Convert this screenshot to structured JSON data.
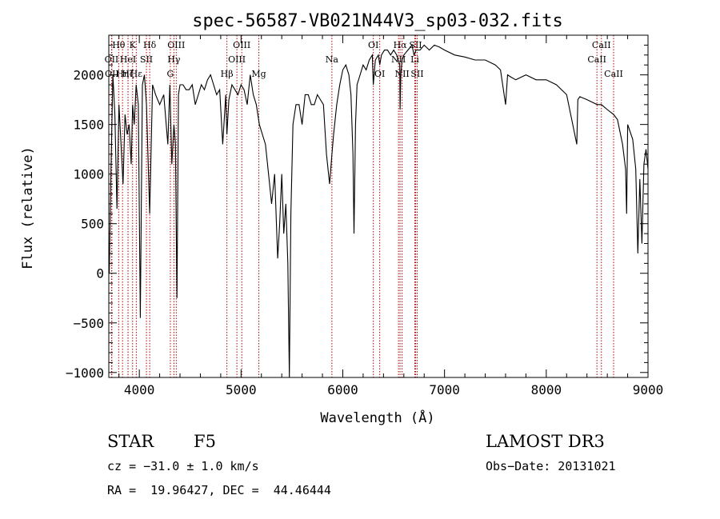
{
  "chart_data": {
    "type": "line",
    "title": "spec-56587-VB021N44V3_sp03-032.fits",
    "xlabel": "Wavelength (Å)",
    "ylabel": "Flux (relative)",
    "xlim": [
      3700,
      9000
    ],
    "ylim": [
      -1050,
      2400
    ],
    "x_ticks": [
      4000,
      5000,
      6000,
      7000,
      8000,
      9000
    ],
    "y_ticks": [
      -1000,
      -500,
      0,
      500,
      1000,
      1500,
      2000
    ],
    "grid": false,
    "series": [
      {
        "color": "#000000",
        "x": [
          3705,
          3720,
          3740,
          3760,
          3780,
          3800,
          3820,
          3840,
          3860,
          3880,
          3900,
          3920,
          3934,
          3950,
          3969,
          3990,
          4010,
          4030,
          4050,
          4070,
          4102,
          4130,
          4160,
          4200,
          4240,
          4280,
          4300,
          4320,
          4340,
          4355,
          4370,
          4385,
          4400,
          4430,
          4460,
          4490,
          4520,
          4550,
          4580,
          4610,
          4640,
          4670,
          4700,
          4730,
          4760,
          4790,
          4820,
          4850,
          4861,
          4880,
          4910,
          4940,
          4970,
          5000,
          5030,
          5060,
          5090,
          5120,
          5150,
          5180,
          5210,
          5240,
          5270,
          5300,
          5330,
          5360,
          5380,
          5400,
          5420,
          5440,
          5460,
          5475,
          5490,
          5510,
          5540,
          5570,
          5600,
          5630,
          5660,
          5690,
          5720,
          5750,
          5780,
          5810,
          5840,
          5870,
          5893,
          5910,
          5940,
          5970,
          6000,
          6030,
          6060,
          6080,
          6100,
          6110,
          6125,
          6140,
          6170,
          6200,
          6230,
          6260,
          6290,
          6300,
          6320,
          6350,
          6363,
          6380,
          6410,
          6440,
          6470,
          6500,
          6530,
          6560,
          6563,
          6570,
          6583,
          6600,
          6640,
          6680,
          6700,
          6720,
          6760,
          6800,
          6850,
          6900,
          6950,
          7000,
          7100,
          7200,
          7300,
          7400,
          7500,
          7550,
          7600,
          7620,
          7650,
          7700,
          7800,
          7900,
          8000,
          8100,
          8200,
          8300,
          8310,
          8330,
          8400,
          8500,
          8542,
          8600,
          8662,
          8700,
          8750,
          8780,
          8790,
          8800,
          8850,
          8880,
          8900,
          8920,
          8940,
          8960,
          8980,
          9000
        ],
        "y": [
          0,
          950,
          2000,
          1600,
          650,
          1700,
          1300,
          900,
          1600,
          1400,
          1500,
          1100,
          1700,
          1500,
          1900,
          1700,
          -450,
          1900,
          2000,
          1700,
          600,
          1900,
          1800,
          1700,
          1800,
          1300,
          1900,
          1100,
          1500,
          1300,
          -250,
          1800,
          1900,
          1900,
          1850,
          1850,
          1900,
          1700,
          1800,
          1900,
          1850,
          1950,
          2000,
          1900,
          1800,
          1850,
          1300,
          1800,
          1400,
          1750,
          1900,
          1850,
          1800,
          1900,
          1850,
          1700,
          2000,
          1800,
          1700,
          1500,
          1400,
          1300,
          1000,
          700,
          1000,
          150,
          500,
          1000,
          400,
          700,
          100,
          -1050,
          600,
          1500,
          1700,
          1700,
          1500,
          1800,
          1800,
          1700,
          1700,
          1800,
          1750,
          1700,
          1200,
          900,
          1200,
          1400,
          1700,
          1900,
          2050,
          2100,
          2000,
          1800,
          1200,
          400,
          1500,
          1900,
          2000,
          2100,
          2050,
          2150,
          2200,
          1900,
          2150,
          2200,
          2100,
          2200,
          2250,
          2250,
          2200,
          2250,
          2200,
          2100,
          1650,
          2000,
          2150,
          2200,
          2250,
          2300,
          2200,
          2250,
          2250,
          2300,
          2250,
          2300,
          2280,
          2250,
          2200,
          2180,
          2150,
          2150,
          2100,
          2050,
          1700,
          2000,
          1980,
          1950,
          2000,
          1950,
          1950,
          1900,
          1800,
          1300,
          1750,
          1780,
          1750,
          1700,
          1700,
          1650,
          1600,
          1550,
          1300,
          1050,
          600,
          1500,
          1350,
          1050,
          200,
          950,
          300,
          1100,
          1250,
          1050
        ]
      }
    ],
    "line_markers": [
      {
        "label": "Hθ",
        "x": 3797,
        "row": 0
      },
      {
        "label": "OII",
        "x": 3727,
        "row": 1
      },
      {
        "label": "OII",
        "x": 3730,
        "row": 2
      },
      {
        "label": "Hη",
        "x": 3835,
        "row": 2
      },
      {
        "label": "K",
        "x": 3934,
        "row": 0
      },
      {
        "label": "HeI",
        "x": 3889,
        "row": 1
      },
      {
        "label": "Hζ",
        "x": 3889,
        "row": 2
      },
      {
        "label": "Hε",
        "x": 3970,
        "row": 2
      },
      {
        "label": "Hδ",
        "x": 4102,
        "row": 0
      },
      {
        "label": "SII",
        "x": 4070,
        "row": 1
      },
      {
        "label": "OIII",
        "x": 4363,
        "row": 0
      },
      {
        "label": "Hγ",
        "x": 4340,
        "row": 1
      },
      {
        "label": "G",
        "x": 4305,
        "row": 2
      },
      {
        "label": "OIII",
        "x": 5007,
        "row": 0
      },
      {
        "label": "OIII",
        "x": 4959,
        "row": 1
      },
      {
        "label": "Hβ",
        "x": 4861,
        "row": 2
      },
      {
        "label": "Mg",
        "x": 5175,
        "row": 2
      },
      {
        "label": "Na",
        "x": 5893,
        "row": 1
      },
      {
        "label": "OI",
        "x": 6300,
        "row": 0
      },
      {
        "label": "OI",
        "x": 6363,
        "row": 2
      },
      {
        "label": "Hα",
        "x": 6563,
        "row": 0
      },
      {
        "label": "NII",
        "x": 6548,
        "row": 1
      },
      {
        "label": "NII",
        "x": 6583,
        "row": 2
      },
      {
        "label": "SII",
        "x": 6716,
        "row": 0
      },
      {
        "label": "Li",
        "x": 6708,
        "row": 1
      },
      {
        "label": "SII",
        "x": 6731,
        "row": 2
      },
      {
        "label": "CaII",
        "x": 8542,
        "row": 0
      },
      {
        "label": "CaII",
        "x": 8498,
        "row": 1
      },
      {
        "label": "CaII",
        "x": 8662,
        "row": 2
      }
    ]
  },
  "footer": {
    "class_label": "STAR",
    "subclass": "F5",
    "survey": "LAMOST DR3",
    "cz": "cz = −31.0 ± 1.0 km/s",
    "obs_date": "Obs−Date: 20131021",
    "radec": "RA =  19.96427, DEC =  44.46444"
  }
}
